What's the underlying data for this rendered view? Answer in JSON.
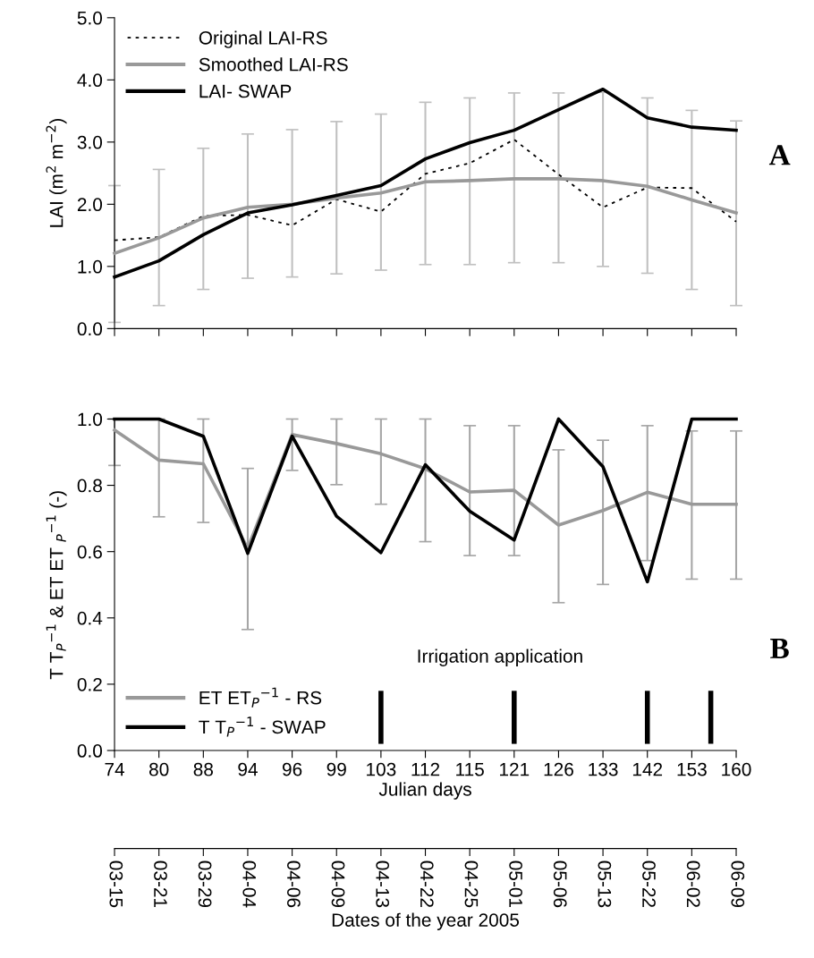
{
  "chart_data": [
    {
      "type": "line",
      "ylabel": "LAI (m$^{2}$ m$^{−2}$)",
      "categories": [
        "74",
        "80",
        "88",
        "94",
        "96",
        "99",
        "103",
        "112",
        "115",
        "121",
        "126",
        "133",
        "142",
        "153",
        "160"
      ],
      "ylim": [
        0,
        5
      ],
      "yticks": [
        {
          "value": 0,
          "label": "0.0"
        },
        {
          "value": 1,
          "label": "1.0"
        },
        {
          "value": 2,
          "label": "2.0"
        },
        {
          "value": 3,
          "label": "3.0"
        },
        {
          "value": 4,
          "label": "4.0"
        },
        {
          "value": 5,
          "label": "5.0"
        }
      ],
      "tick_labels": "y",
      "legend": "top left",
      "marker": "none",
      "annotations": [
        "A"
      ],
      "series": [
        {
          "name": "Original LAI-RS",
          "color": "#000000",
          "line_style": "dotted",
          "values": [
            1.42,
            1.47,
            1.81,
            1.83,
            1.66,
            2.08,
            1.88,
            2.49,
            2.66,
            3.04,
            2.48,
            1.95,
            2.27,
            2.26,
            1.72
          ]
        },
        {
          "name": "Smoothed LAI-RS",
          "color": "#999999",
          "line_style": "solid",
          "values": [
            1.21,
            1.46,
            1.78,
            1.95,
            2.0,
            2.1,
            2.18,
            2.36,
            2.38,
            2.41,
            2.41,
            2.38,
            2.29,
            2.07,
            1.86
          ],
          "errors": [
            [
              0.1,
              2.3
            ],
            [
              0.37,
              2.56
            ],
            [
              0.63,
              2.9
            ],
            [
              0.81,
              3.13
            ],
            [
              0.83,
              3.2
            ],
            [
              0.88,
              3.33
            ],
            [
              0.94,
              3.45
            ],
            [
              1.03,
              3.64
            ],
            [
              1.03,
              3.71
            ],
            [
              1.06,
              3.79
            ],
            [
              1.06,
              3.79
            ],
            [
              1.0,
              3.8
            ],
            [
              0.89,
              3.71
            ],
            [
              0.63,
              3.51
            ],
            [
              0.37,
              3.34
            ]
          ]
        },
        {
          "name": "LAI- SWAP",
          "color": "#000000",
          "line_style": "solid",
          "values": [
            0.83,
            1.09,
            1.51,
            1.86,
            1.99,
            2.14,
            2.3,
            2.73,
            2.99,
            3.19,
            3.52,
            3.85,
            3.39,
            3.24,
            3.19
          ]
        }
      ]
    },
    {
      "type": "line",
      "ylabel": "T T$_{P}$$^{−1}$ & ET ET $_{P}$$^{−1}$ (-)",
      "xlabel": "Julian days",
      "categories": [
        "74",
        "80",
        "88",
        "94",
        "96",
        "99",
        "103",
        "112",
        "115",
        "121",
        "126",
        "133",
        "142",
        "153",
        "160"
      ],
      "ref_lines": [
        {
          "axis": "x",
          "value": "103",
          "color": "#000000"
        },
        {
          "axis": "x",
          "value": "121",
          "color": "#000000"
        },
        {
          "axis": "x",
          "value": "142",
          "color": "#000000"
        }
      ],
      "ylim": [
        0,
        1
      ],
      "yticks": [
        {
          "value": 0,
          "label": "0.0"
        },
        {
          "value": 0.2,
          "label": "0.2"
        },
        {
          "value": 0.4,
          "label": "0.4"
        },
        {
          "value": 0.6,
          "label": "0.6"
        },
        {
          "value": 0.8,
          "label": "0.8"
        },
        {
          "value": 1,
          "label": "1.0"
        }
      ],
      "legend": "bottom left",
      "marker": "none",
      "annotations": [
        "B",
        "Irrigation application"
      ],
      "series": [
        {
          "name": "ET ET$_{P}$$^{−1}$ - RS",
          "color": "#999999",
          "line_style": "solid",
          "values": [
            0.967,
            0.876,
            0.865,
            0.61,
            0.953,
            0.926,
            0.895,
            0.85,
            0.78,
            0.785,
            0.68,
            0.724,
            0.779,
            0.743,
            0.743
          ],
          "errors": [
            [
              0.86,
              1.0
            ],
            [
              0.705,
              1.0
            ],
            [
              0.688,
              1.0
            ],
            [
              0.365,
              0.851
            ],
            [
              0.845,
              1.0
            ],
            [
              0.802,
              1.0
            ],
            [
              0.743,
              1.0
            ],
            [
              0.63,
              1.0
            ],
            [
              0.588,
              0.98
            ],
            [
              0.588,
              0.98
            ],
            [
              0.446,
              0.907
            ],
            [
              0.501,
              0.936
            ],
            [
              0.573,
              0.98
            ],
            [
              0.517,
              0.964
            ],
            [
              0.517,
              0.964
            ]
          ]
        },
        {
          "name": "T T$_{P}$$^{−1}$ - SWAP",
          "color": "#000000",
          "line_style": "solid",
          "values": [
            1.0,
            1.0,
            0.948,
            0.595,
            0.948,
            0.707,
            0.597,
            0.862,
            0.722,
            0.635,
            1.0,
            0.856,
            0.509,
            1.0,
            1.0
          ]
        }
      ]
    },
    {
      "type": "other",
      "xlabel": "Dates of the year 2005",
      "categories": [
        "03-15",
        "03-21",
        "03-29",
        "04-04",
        "04-06",
        "04-09",
        "04-13",
        "04-22",
        "04-25",
        "05-01",
        "05-06",
        "05-13",
        "05-22",
        "06-02",
        "06-09"
      ]
    }
  ]
}
